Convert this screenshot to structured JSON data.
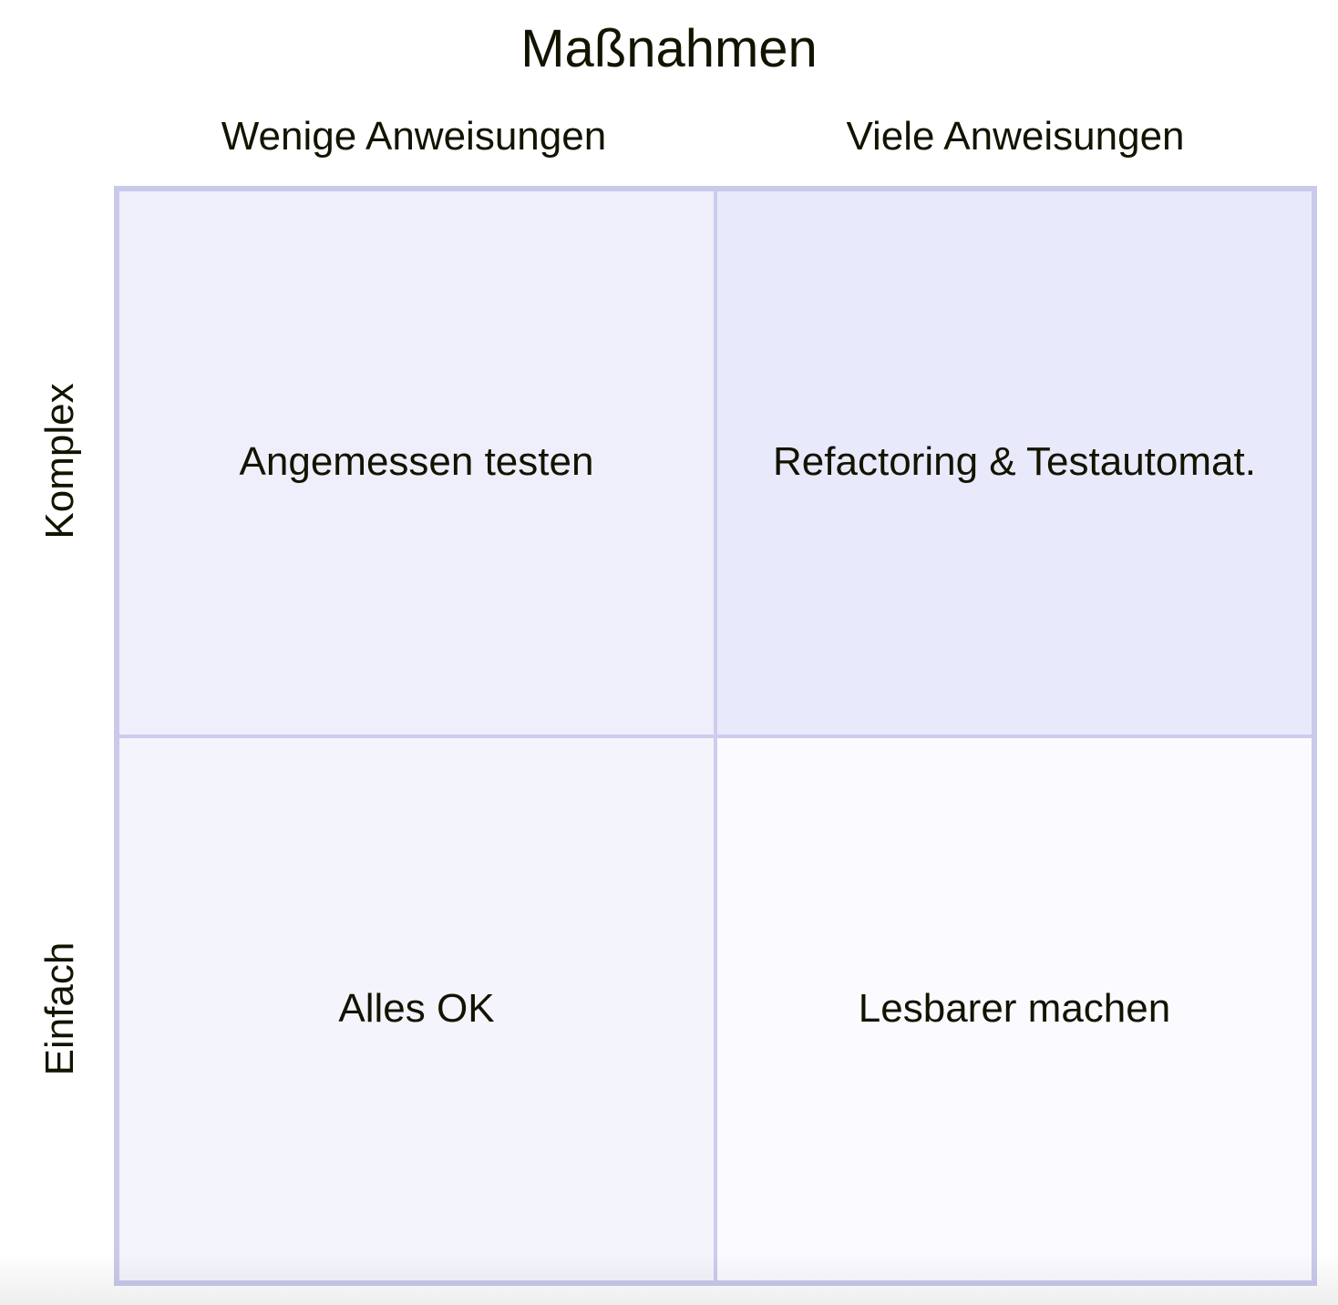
{
  "diagram": {
    "type": "quadrant-matrix",
    "title": "Maßnahmen",
    "x_axis": {
      "left": "Wenige Anweisungen",
      "right": "Viele Anweisungen"
    },
    "y_axis": {
      "top": "Komplex",
      "bottom": "Einfach"
    },
    "quadrants": {
      "top_left": {
        "label": "Angemessen testen"
      },
      "top_right": {
        "label": "Refactoring & Testautomat."
      },
      "bottom_left": {
        "label": "Alles OK"
      },
      "bottom_right": {
        "label": "Lesbarer machen"
      }
    },
    "colors": {
      "text": "#131300",
      "outer_border": "#c9c9ec",
      "inner_divider": "#ccccee",
      "quadrant_top_left_fill": "#efeffb",
      "quadrant_top_right_fill": "#e9e9fc",
      "quadrant_bottom_left_fill": "#f4f4fc",
      "quadrant_bottom_right_fill": "#fbfafe",
      "background": "#ffffff"
    }
  }
}
